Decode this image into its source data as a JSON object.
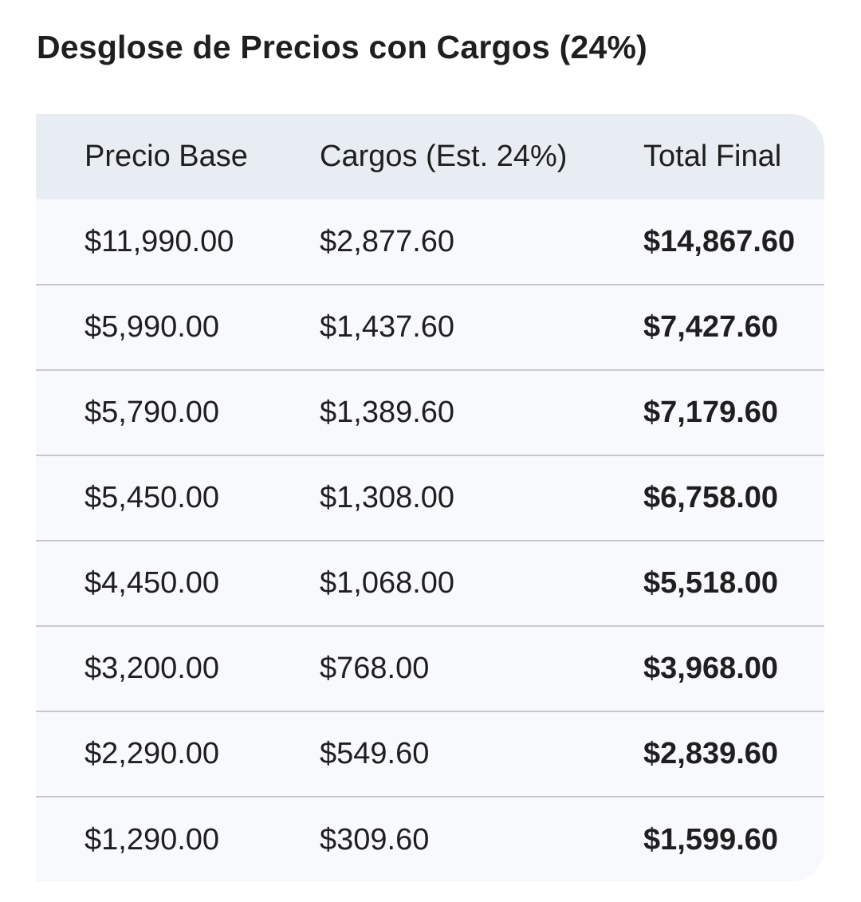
{
  "title": "Desglose de Precios con Cargos (24%)",
  "table": {
    "headers": [
      "Precio Base",
      "Cargos (Est. 24%)",
      "Total Final"
    ],
    "rows": [
      [
        "$11,990.00",
        "$2,877.60",
        "$14,867.60"
      ],
      [
        "$5,990.00",
        "$1,437.60",
        "$7,427.60"
      ],
      [
        "$5,790.00",
        "$1,389.60",
        "$7,179.60"
      ],
      [
        "$5,450.00",
        "$1,308.00",
        "$6,758.00"
      ],
      [
        "$4,450.00",
        "$1,068.00",
        "$5,518.00"
      ],
      [
        "$3,200.00",
        "$768.00",
        "$3,968.00"
      ],
      [
        "$2,290.00",
        "$549.60",
        "$2,839.60"
      ],
      [
        "$1,290.00",
        "$309.60",
        "$1,599.60"
      ]
    ]
  },
  "colors": {
    "header_bg": "#e8ecf3",
    "row_bg": "#f8f9fc",
    "divider": "#c9c9c9",
    "text": "#1f1f1f"
  }
}
